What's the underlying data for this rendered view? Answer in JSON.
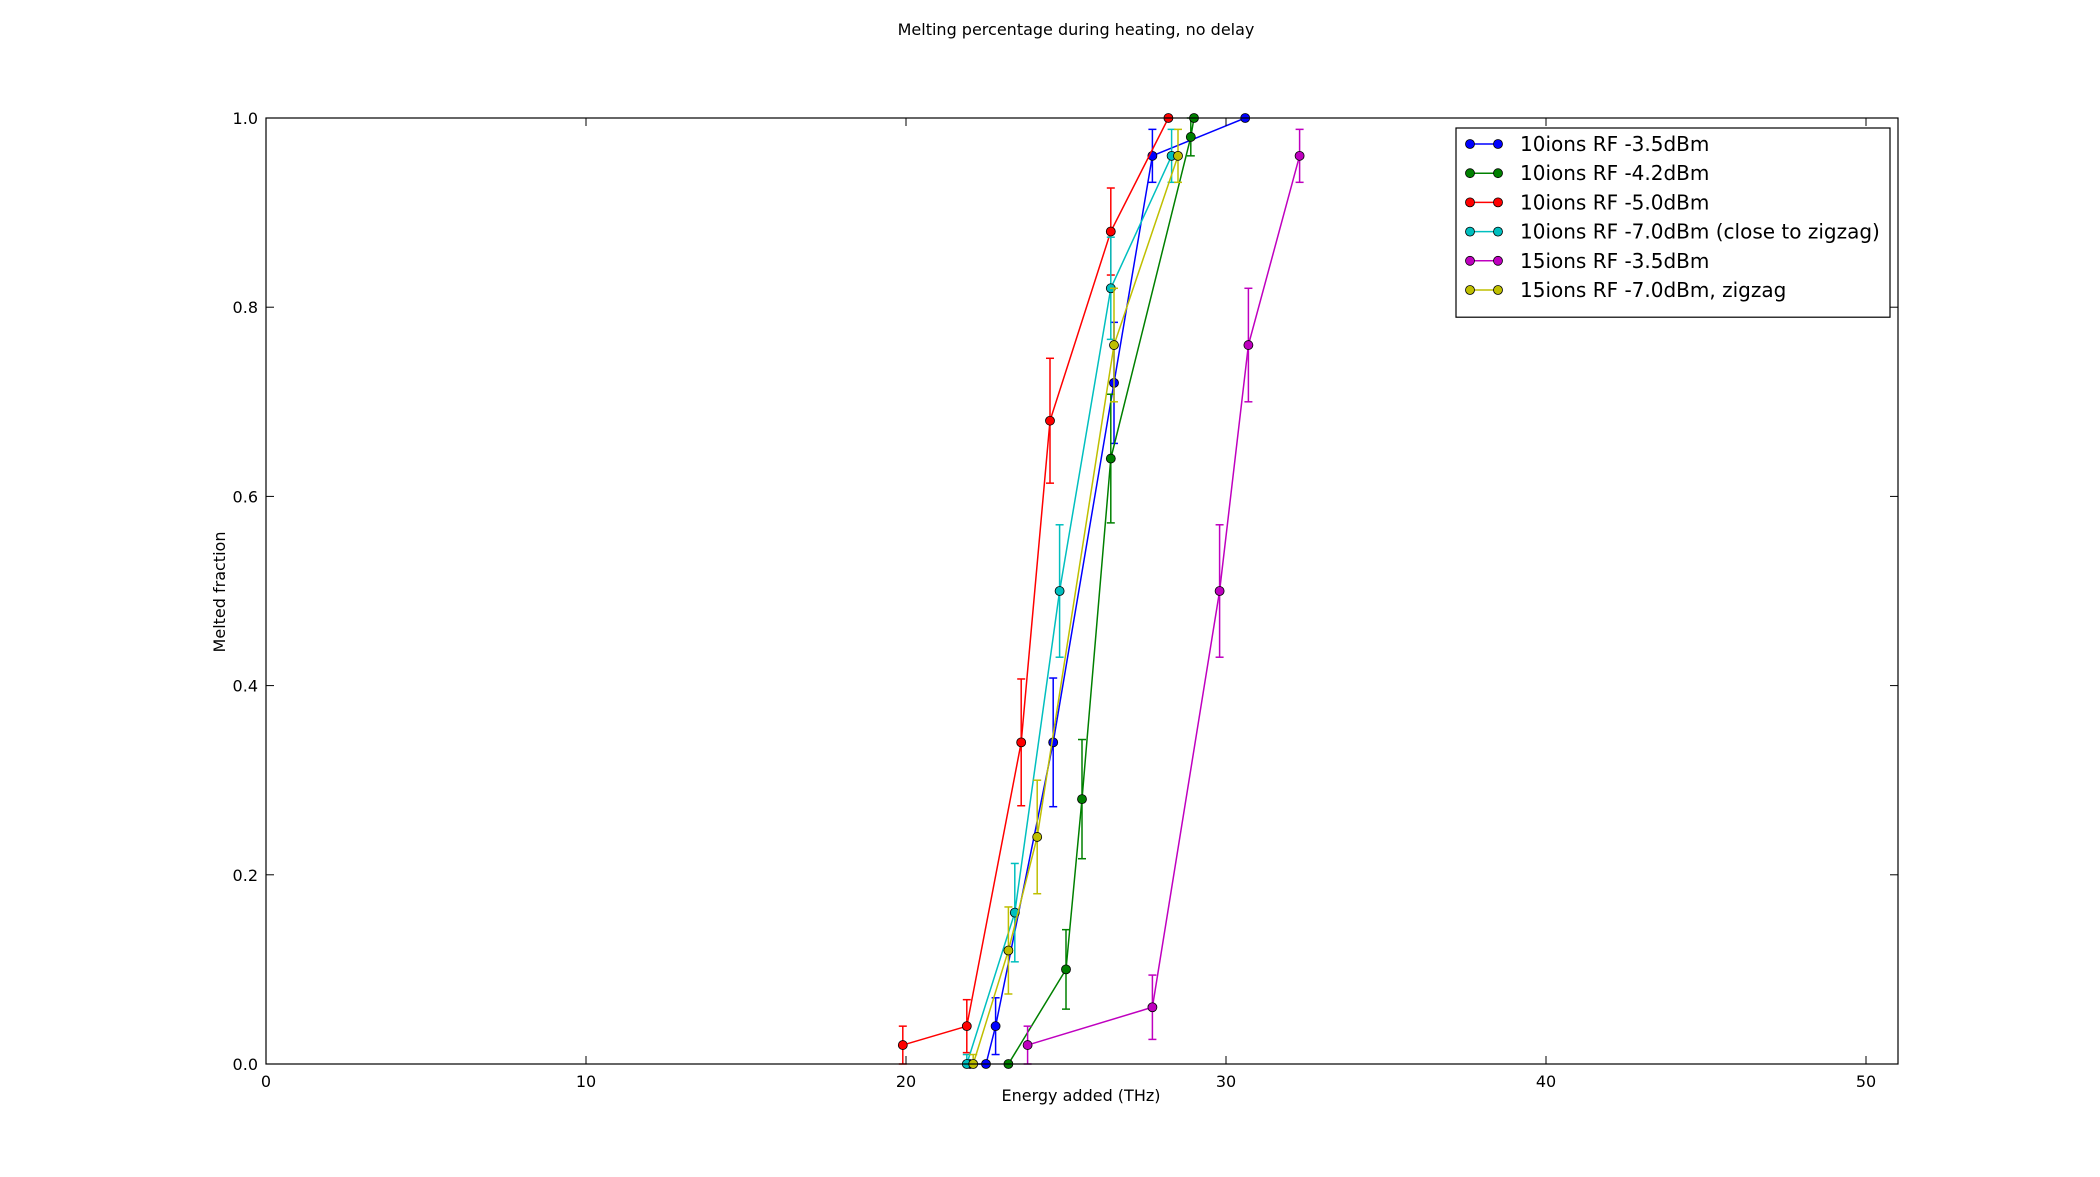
{
  "chart_data": {
    "type": "line",
    "title": "Melting percentage during heating, no delay",
    "xlabel": "Energy added (THz)",
    "ylabel": "Melted fraction",
    "xlim": [
      0,
      51
    ],
    "ylim": [
      0,
      1.0
    ],
    "xticks": [
      0,
      10,
      20,
      30,
      40,
      50
    ],
    "xtick_labels": [
      "0",
      "10",
      "20",
      "30",
      "40",
      "50"
    ],
    "yticks": [
      0.0,
      0.2,
      0.4,
      0.6,
      0.8,
      1.0
    ],
    "ytick_labels": [
      "0.0",
      "0.2",
      "0.4",
      "0.6",
      "0.8",
      "1.0"
    ],
    "grid": false,
    "legend_position": "top-right",
    "series": [
      {
        "name": "10ions RF -3.5dBm",
        "color": "#0000ff",
        "x": [
          22.0,
          22.5,
          22.8,
          24.6,
          26.5,
          27.7,
          30.6
        ],
        "y": [
          0.0,
          0.0,
          0.04,
          0.34,
          0.72,
          0.96,
          1.0
        ],
        "err": [
          0,
          0,
          0.03,
          0.068,
          0.064,
          0.028,
          0
        ]
      },
      {
        "name": "10ions RF -4.2dBm",
        "color": "#008000",
        "x": [
          23.2,
          25.0,
          25.5,
          26.4,
          28.9,
          29.0
        ],
        "y": [
          0.0,
          0.1,
          0.28,
          0.64,
          0.98,
          1.0
        ],
        "err": [
          0,
          0.042,
          0.063,
          0.068,
          0.02,
          0
        ]
      },
      {
        "name": "10ions RF -5.0dBm",
        "color": "#ff0000",
        "x": [
          19.9,
          21.9,
          23.6,
          24.5,
          26.4,
          28.2
        ],
        "y": [
          0.02,
          0.04,
          0.34,
          0.68,
          0.88,
          1.0
        ],
        "err": [
          0.02,
          0.028,
          0.067,
          0.066,
          0.046,
          0
        ]
      },
      {
        "name": "10ions RF -7.0dBm (close to zigzag)",
        "color": "#00bfbf",
        "x": [
          21.9,
          23.4,
          24.8,
          26.4,
          28.3
        ],
        "y": [
          0.0,
          0.16,
          0.5,
          0.82,
          0.96
        ],
        "err": [
          0.01,
          0.052,
          0.07,
          0.054,
          0.028
        ]
      },
      {
        "name": "15ions RF -3.5dBm",
        "color": "#bf00bf",
        "x": [
          23.8,
          27.7,
          29.8,
          30.7,
          32.3
        ],
        "y": [
          0.02,
          0.06,
          0.5,
          0.76,
          0.96
        ],
        "err": [
          0.02,
          0.034,
          0.07,
          0.06,
          0.028
        ]
      },
      {
        "name": "15ions RF -7.0dBm, zigzag",
        "color": "#bfbf00",
        "x": [
          22.1,
          23.2,
          24.1,
          26.5,
          28.5
        ],
        "y": [
          0.0,
          0.12,
          0.24,
          0.76,
          0.96
        ],
        "err": [
          0.01,
          0.046,
          0.06,
          0.06,
          0.028
        ]
      }
    ]
  }
}
